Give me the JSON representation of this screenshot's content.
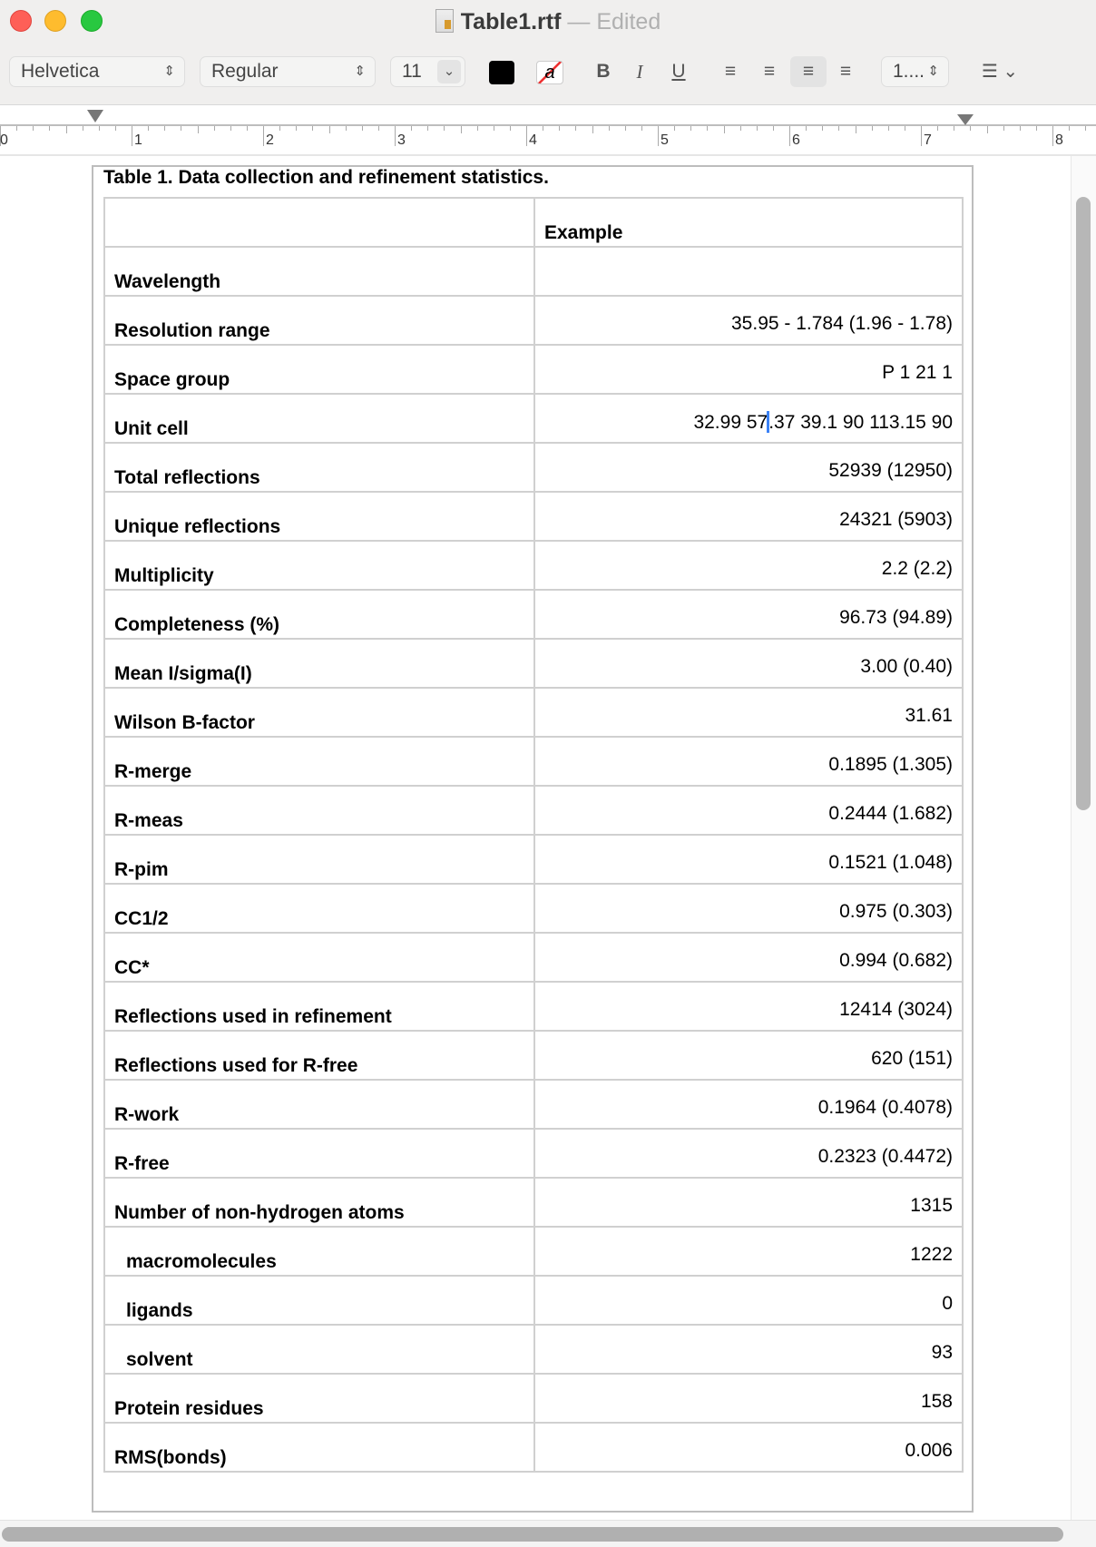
{
  "window": {
    "title": "Table1.rtf",
    "separator": "—",
    "status": "Edited"
  },
  "toolbar": {
    "font_family": "Helvetica",
    "font_style": "Regular",
    "font_size": "11",
    "text_color": "#000000",
    "bold": "B",
    "italic": "I",
    "underline": "U",
    "alignment_active": "right",
    "line_spacing": "1....",
    "list_icon": "list-icon"
  },
  "ruler": {
    "labels": [
      "0",
      "1",
      "2",
      "3",
      "4",
      "5",
      "6",
      "7",
      "8"
    ]
  },
  "document": {
    "caption": "Table 1.  Data collection and refinement statistics.",
    "header": [
      "",
      "Example"
    ],
    "rows": [
      {
        "label": "Wavelength",
        "value": ""
      },
      {
        "label": "Resolution range",
        "value": "35.95  - 1.784 (1.96  - 1.78)"
      },
      {
        "label": "Space group",
        "value": "P 1 21 1"
      },
      {
        "label": "Unit cell",
        "value_before_caret": "32.99 57",
        "value_after_caret": ".37 39.1 90 113.15 90"
      },
      {
        "label": "Total reflections",
        "value": "52939 (12950)"
      },
      {
        "label": "Unique reflections",
        "value": "24321 (5903)"
      },
      {
        "label": "Multiplicity",
        "value": "2.2 (2.2)"
      },
      {
        "label": "Completeness (%)",
        "value": "96.73 (94.89)"
      },
      {
        "label": "Mean I/sigma(I)",
        "value": "3.00 (0.40)"
      },
      {
        "label": "Wilson B-factor",
        "value": "31.61"
      },
      {
        "label": "R-merge",
        "value": "0.1895 (1.305)"
      },
      {
        "label": "R-meas",
        "value": "0.2444 (1.682)"
      },
      {
        "label": "R-pim",
        "value": "0.1521 (1.048)"
      },
      {
        "label": "CC1/2",
        "value": "0.975 (0.303)"
      },
      {
        "label": "CC*",
        "value": "0.994 (0.682)"
      },
      {
        "label": "Reflections used in refinement",
        "value": "12414 (3024)"
      },
      {
        "label": "Reflections used for R-free",
        "value": "620 (151)"
      },
      {
        "label": "R-work",
        "value": "0.1964 (0.4078)"
      },
      {
        "label": "R-free",
        "value": "0.2323 (0.4472)"
      },
      {
        "label": "Number of non-hydrogen atoms",
        "value": "1315"
      },
      {
        "label": "macromolecules",
        "value": "1222",
        "indent": true
      },
      {
        "label": "ligands",
        "value": "0",
        "indent": true
      },
      {
        "label": "solvent",
        "value": "93",
        "indent": true
      },
      {
        "label": "Protein residues",
        "value": "158"
      },
      {
        "label": "RMS(bonds)",
        "value": "0.006"
      }
    ]
  }
}
